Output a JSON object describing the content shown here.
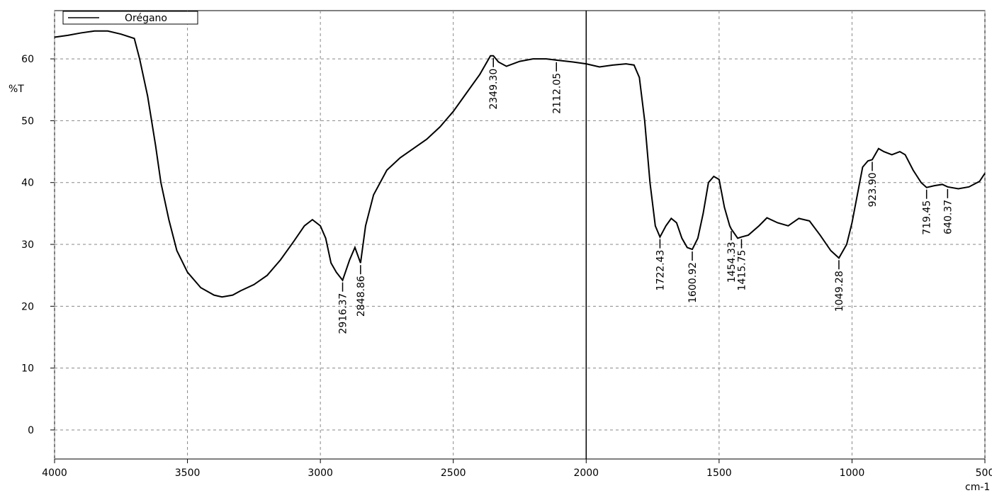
{
  "chart_data": {
    "type": "line",
    "x_label": "cm-1",
    "y_label": "%T",
    "x": [
      4000,
      3950,
      3900,
      3850,
      3800,
      3750,
      3700,
      3680,
      3650,
      3620,
      3600,
      3570,
      3540,
      3500,
      3450,
      3400,
      3370,
      3330,
      3300,
      3250,
      3200,
      3150,
      3100,
      3060,
      3030,
      3000,
      2980,
      2960,
      2940,
      2916.37,
      2890,
      2870,
      2848.86,
      2830,
      2800,
      2750,
      2700,
      2650,
      2600,
      2550,
      2500,
      2450,
      2400,
      2360,
      2349.3,
      2330,
      2300,
      2250,
      2200,
      2150,
      2112.05,
      2050,
      2000,
      1950,
      1900,
      1850,
      1820,
      1800,
      1780,
      1760,
      1740,
      1722.43,
      1700,
      1680,
      1660,
      1640,
      1620,
      1600.92,
      1580,
      1560,
      1540,
      1520,
      1500,
      1480,
      1460,
      1454.33,
      1430,
      1415.75,
      1390,
      1350,
      1320,
      1280,
      1240,
      1200,
      1160,
      1120,
      1080,
      1049.28,
      1020,
      1000,
      980,
      960,
      940,
      923.9,
      900,
      880,
      850,
      820,
      800,
      770,
      740,
      719.45,
      690,
      660,
      640.37,
      600,
      560,
      520,
      500
    ],
    "series": [
      {
        "name": "Orégano",
        "color": "#000000",
        "values": [
          63.5,
          63.8,
          64.2,
          64.5,
          64.5,
          64,
          63.3,
          60,
          54,
          46,
          40,
          34,
          29,
          25.5,
          23,
          21.8,
          21.5,
          21.8,
          22.5,
          23.5,
          25,
          27.5,
          30.5,
          33,
          34,
          33,
          31,
          27,
          25.5,
          24.2,
          27.5,
          29.5,
          27,
          33,
          38,
          42,
          44,
          45.5,
          47,
          49,
          51.5,
          54.5,
          57.5,
          60.5,
          60.5,
          59.5,
          58.8,
          59.6,
          60,
          60,
          59.8,
          59.5,
          59.2,
          58.7,
          59,
          59.2,
          59,
          57,
          50,
          40,
          33,
          31.2,
          33,
          34.2,
          33.5,
          31,
          29.5,
          29.2,
          31,
          35,
          40,
          41,
          40.5,
          36,
          33,
          32.5,
          31,
          31.2,
          31.5,
          33,
          34.3,
          33.5,
          33,
          34.2,
          33.8,
          31.5,
          29,
          27.8,
          30,
          33.5,
          38,
          42.5,
          43.5,
          43.7,
          45.5,
          45,
          44.5,
          45,
          44.5,
          42,
          40,
          39.2,
          39.5,
          39.7,
          39.3,
          39,
          39.3,
          40.2,
          41.5
        ]
      }
    ],
    "peaks": {
      "x": [
        2916.37,
        2848.86,
        2349.3,
        2112.05,
        1722.43,
        1600.92,
        1454.33,
        1415.75,
        1049.28,
        923.9,
        719.45,
        640.37
      ],
      "y": [
        24.2,
        27,
        60.5,
        59.8,
        31.2,
        29.2,
        32.5,
        31.2,
        27.8,
        43.7,
        39.2,
        39.3
      ],
      "value_labels": [
        "2916.37",
        "2848.86",
        "2349.30",
        "2112.05",
        "1722.43",
        "1600.92",
        "1454.33",
        "1415.75",
        "1049.28",
        "923.90",
        "719.45",
        "640.37"
      ]
    },
    "xlim": [
      4000,
      500
    ],
    "xticks": [
      4000,
      3500,
      3000,
      2500,
      2000,
      1500,
      1000,
      500
    ],
    "ylim": [
      -4.7,
      67.8
    ],
    "yticks": [
      0,
      10,
      20,
      30,
      40,
      50,
      60
    ],
    "divider_x": 2000,
    "grid": true,
    "legend": "top-left"
  }
}
